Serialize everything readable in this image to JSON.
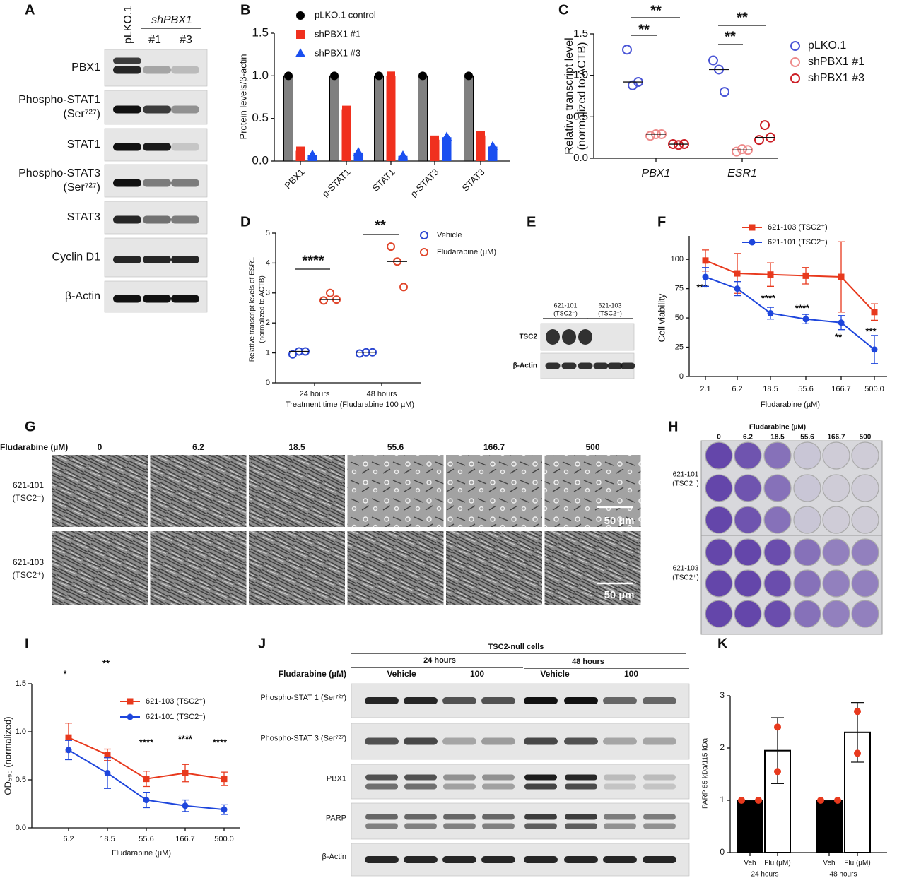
{
  "chart_data": [
    {
      "type": "bar",
      "letter": "B",
      "ylabel": "Protein levels/β-actin",
      "categories": [
        "PBX1",
        "p-STAT1",
        "STAT1",
        "p-STAT3",
        "STAT3"
      ],
      "series": [
        {
          "name": "pLKO.1 control",
          "color": "#000000",
          "bar_color": "#808080",
          "marker": "circle",
          "values": [
            1,
            1,
            1,
            1,
            1
          ]
        },
        {
          "name": "shPBX1 #1",
          "color": "#f0301e",
          "marker": "square",
          "values": [
            0.12,
            0.6,
            1.0,
            0.25,
            0.3
          ]
        },
        {
          "name": "shPBX1 #3",
          "color": "#1a4ff0",
          "marker": "triangle",
          "values": [
            0.07,
            0.1,
            0.06,
            0.28,
            0.17
          ]
        }
      ],
      "ylim": [
        0,
        1.5
      ],
      "yticks": [
        {
          "value": 0,
          "label": "0.0"
        },
        0.5,
        {
          "value": 1,
          "label": "1.0"
        },
        1.5
      ]
    },
    {
      "type": "dot",
      "letter": "C",
      "ylabel": [
        "Relative transcript level",
        "(normalized to ACTB)"
      ],
      "categories": [
        "PBX1",
        "ESR1"
      ],
      "series": [
        {
          "name": "pLKO.1",
          "color": "#4a55d6",
          "values": [
            [
              1.31,
              0.88,
              0.92
            ],
            [
              1.18,
              1.07,
              0.8
            ]
          ]
        },
        {
          "name": "shPBX1 #1",
          "color": "#ee8c8c",
          "values": [
            [
              0.27,
              0.29,
              0.29
            ],
            [
              0.08,
              0.11,
              0.1
            ]
          ]
        },
        {
          "name": "shPBX1 #3",
          "color": "#cc1f26",
          "values": [
            [
              0.17,
              0.16,
              0.17
            ],
            [
              0.22,
              0.4,
              0.25
            ]
          ]
        }
      ],
      "ylim": [
        0,
        1.5
      ],
      "yticks": [
        {
          "value": 0,
          "label": "0.0"
        },
        0.5,
        {
          "value": 1,
          "label": "1.0"
        },
        1.5
      ],
      "annotations": [
        "**",
        "**",
        "**",
        "**"
      ]
    },
    {
      "type": "dot",
      "letter": "D",
      "ylabel": [
        "Relative transcript levels of ESR1",
        "(normalized to ACTB)"
      ],
      "xlabel": "Treatment time (Fludarabine 100 µM)",
      "categories": [
        "24 hours",
        "48 hours"
      ],
      "series": [
        {
          "name": "Vehicle",
          "color": "#2a45d0",
          "values": [
            [
              0.95,
              1.05,
              1.05
            ],
            [
              0.98,
              1.02,
              1.02
            ]
          ]
        },
        {
          "name": "Fludarabine (µM)",
          "color": "#e0452a",
          "values": [
            [
              2.75,
              3.0,
              2.78
            ],
            [
              4.55,
              4.05,
              3.2
            ]
          ]
        }
      ],
      "ylim": [
        0,
        5
      ],
      "yticks": [
        0,
        1,
        2,
        3,
        4,
        5
      ],
      "annotations": [
        "****",
        "**"
      ]
    },
    {
      "type": "line",
      "letter": "F",
      "ylabel": "Cell viability",
      "xlabel": "Fludarabine (µM)",
      "categories": [
        "2.1",
        "6.2",
        "18.5",
        "55.6",
        "166.7",
        "500.0"
      ],
      "series": [
        {
          "name": "621-103 (TSC2⁺)",
          "color": "#e8391d",
          "marker": "square",
          "values": [
            99,
            88,
            87,
            86,
            85,
            55
          ],
          "errors": [
            9,
            17,
            10,
            7,
            30,
            7
          ]
        },
        {
          "name": "621-101 (TSC2⁻)",
          "color": "#1e46dc",
          "marker": "circle",
          "values": [
            85,
            75,
            54,
            49,
            46,
            23
          ],
          "errors": [
            8,
            6,
            5,
            4,
            6,
            12
          ]
        }
      ],
      "ylim": [
        0,
        120
      ],
      "yticks": [
        0,
        25,
        50,
        75,
        100
      ],
      "annotations": [
        "***",
        "****",
        "****",
        "**",
        "***"
      ]
    },
    {
      "type": "line",
      "letter": "I",
      "ylabel": "OD₅₉₀ (normalized)",
      "xlabel": "Fludarabine (µM)",
      "categories": [
        "6.2",
        "18.5",
        "55.6",
        "166.7",
        "500.0"
      ],
      "series": [
        {
          "name": "621-103 (TSC2⁺)",
          "color": "#e8391d",
          "marker": "square",
          "values": [
            0.94,
            0.76,
            0.51,
            0.57,
            0.51
          ],
          "errors": [
            0.15,
            0.06,
            0.08,
            0.09,
            0.07
          ]
        },
        {
          "name": "621-101 (TSC2⁻)",
          "color": "#1e46dc",
          "marker": "circle",
          "values": [
            0.81,
            0.57,
            0.29,
            0.23,
            0.19
          ],
          "errors": [
            0.1,
            0.16,
            0.08,
            0.06,
            0.05
          ]
        }
      ],
      "ylim": [
        0,
        1.5
      ],
      "yticks": [
        {
          "value": 0,
          "label": "0.0"
        },
        0.5,
        {
          "value": 1,
          "label": "1.0"
        },
        1.5
      ],
      "annotations": [
        "*",
        "**",
        "****",
        "****",
        "****"
      ]
    },
    {
      "type": "bar",
      "letter": "K",
      "ylabel": "PARP 85 kDa/115 kDa",
      "categories": [
        "Veh",
        "Flu (µM)",
        "Veh",
        "Flu (µM)"
      ],
      "groups": [
        "24 hours",
        "48 hours"
      ],
      "values": [
        1,
        1.95,
        1,
        2.3
      ],
      "errors": [
        0,
        0.63,
        0,
        0.57
      ],
      "points": [
        [
          1,
          1
        ],
        [
          2.4,
          1.55
        ],
        [
          1,
          1
        ],
        [
          2.7,
          1.9
        ]
      ],
      "colors": [
        "#000000",
        "#ffffff",
        "#000000",
        "#ffffff"
      ],
      "point_color": "#e8391d",
      "ylim": [
        0,
        3
      ],
      "yticks": [
        0,
        1,
        2,
        3
      ]
    }
  ],
  "blot_a": {
    "letter": "A",
    "lanes": [
      "pLKO.1",
      "#1",
      "#3"
    ],
    "group": "shPBX1",
    "rows": [
      [
        "PBX1"
      ],
      [
        "Phospho-STAT1",
        "(Ser⁷²⁷)"
      ],
      [
        "STAT1"
      ],
      [
        "Phospho-STAT3",
        "(Ser⁷²⁷)"
      ],
      [
        "STAT3"
      ],
      [
        "Cyclin D1"
      ],
      [
        "β-Actin"
      ]
    ]
  },
  "blot_e": {
    "letter": "E",
    "groups": [
      [
        "621-101",
        "(TSC2⁻)"
      ],
      [
        "621-103",
        "(TSC2⁺)"
      ]
    ],
    "rows": [
      "TSC2",
      "β-Actin"
    ]
  },
  "micrographs_g": {
    "letter": "G",
    "label": "Fludarabine (µM)",
    "columns": [
      "0",
      "6.2",
      "18.5",
      "55.6",
      "166.7",
      "500"
    ],
    "rows": [
      [
        "621-101",
        "(TSC2⁻)"
      ],
      [
        "621-103",
        "(TSC2⁺)"
      ]
    ],
    "scale_bar": "50 µm"
  },
  "plate_h": {
    "letter": "H",
    "label": "Fludarabine (µM)",
    "columns": [
      "0",
      "6.2",
      "18.5",
      "55.6",
      "166.7",
      "500"
    ],
    "rows": [
      [
        "621-101",
        "(TSC2⁻)"
      ],
      [
        "621-103",
        "(TSC2⁺)"
      ]
    ]
  },
  "blot_j": {
    "letter": "J",
    "header": "TSC2-null cells",
    "times": [
      "24 hours",
      "48 hours"
    ],
    "label": "Fludarabine (µM)",
    "treatments": [
      "Vehicle",
      "100",
      "Vehicle",
      "100"
    ],
    "rows": [
      "Phospho-STAT 1 (Ser⁷²⁷)",
      "Phospho-STAT 3 (Ser⁷²⁷)",
      "PBX1",
      "PARP",
      "β-Actin"
    ]
  }
}
